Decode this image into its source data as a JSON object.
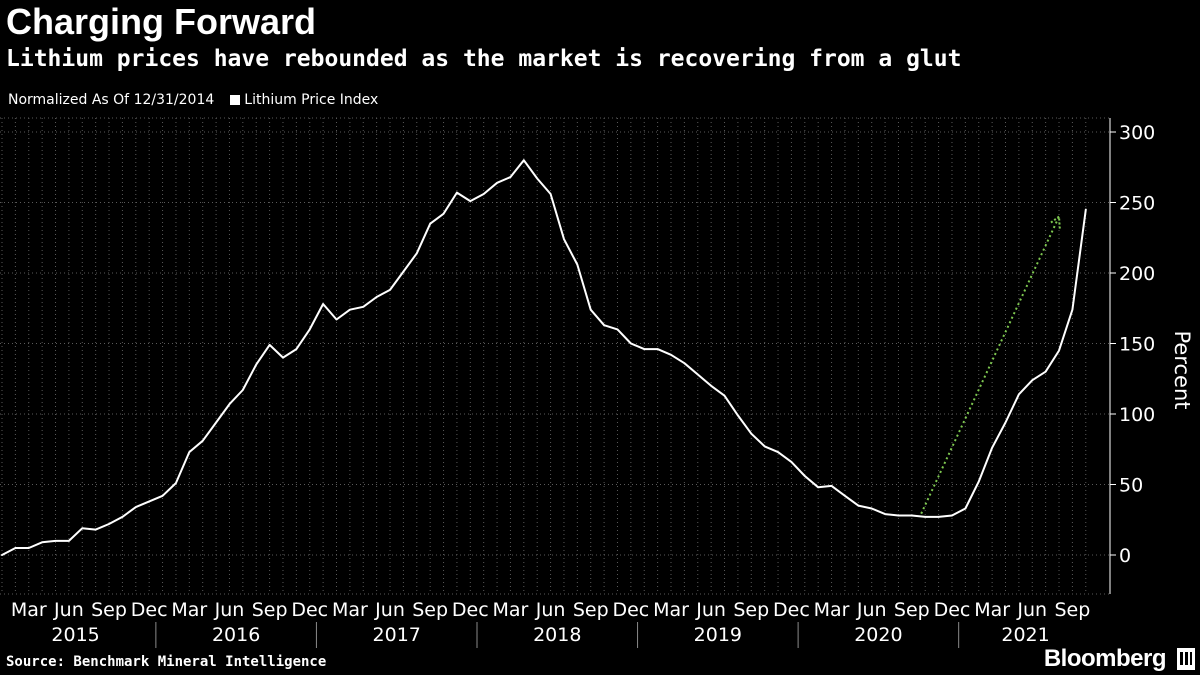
{
  "header": {
    "title": "Charging Forward",
    "subtitle": "Lithium prices have rebounded as the market is recovering from a glut"
  },
  "legend": {
    "note": "Normalized As Of 12/31/2014",
    "series_label": "Lithium Price Index"
  },
  "footer": {
    "source": "Source: Benchmark Mineral Intelligence",
    "brand": "Bloomberg"
  },
  "colors": {
    "background": "#000000",
    "line": "#ffffff",
    "grid": "#5a5a5a",
    "arrow": "#7ec850"
  },
  "chart_data": {
    "type": "line",
    "title": "Charging Forward",
    "subtitle": "Lithium prices have rebounded as the market is recovering from a glut",
    "xlabel": "",
    "ylabel": "Percent",
    "ylim": [
      -27,
      300
    ],
    "yticks": [
      0,
      50,
      100,
      150,
      200,
      250,
      300
    ],
    "grid": true,
    "legend_position": "top-left",
    "x_month_labels": [
      "Mar",
      "Jun",
      "Sep",
      "Dec",
      "Mar",
      "Jun",
      "Sep",
      "Dec",
      "Mar",
      "Jun",
      "Sep",
      "Dec",
      "Mar",
      "Jun",
      "Sep",
      "Dec",
      "Mar",
      "Jun",
      "Sep",
      "Dec",
      "Mar",
      "Jun",
      "Sep",
      "Dec",
      "Mar",
      "Jun",
      "Sep"
    ],
    "x_month_indices": [
      2,
      5,
      8,
      11,
      14,
      17,
      20,
      23,
      26,
      29,
      32,
      35,
      38,
      41,
      44,
      47,
      50,
      53,
      56,
      59,
      62,
      65,
      68,
      71,
      74,
      77,
      80
    ],
    "x_year_labels": [
      "2015",
      "2016",
      "2017",
      "2018",
      "2019",
      "2020",
      "2021"
    ],
    "x_start": "Jan 2015",
    "x_end": "Oct 2021",
    "series": [
      {
        "name": "Lithium Price Index",
        "x_start": "Jan 2015",
        "frequency": "monthly",
        "values": [
          0,
          5,
          5,
          9,
          10,
          10,
          19,
          18,
          22,
          27,
          34,
          38,
          42,
          51,
          73,
          81,
          94,
          107,
          117,
          135,
          149,
          140,
          146,
          160,
          178,
          167,
          174,
          176,
          183,
          188,
          201,
          214,
          235,
          242,
          257,
          251,
          256,
          264,
          268,
          280,
          267,
          256,
          224,
          206,
          174,
          163,
          160,
          150,
          146,
          146,
          142,
          136,
          128,
          120,
          113,
          99,
          86,
          77,
          73,
          66,
          56,
          48,
          49,
          42,
          35,
          33,
          29,
          28,
          28,
          27,
          27,
          28,
          33,
          52,
          76,
          94,
          114,
          124,
          130,
          145,
          174,
          245
        ]
      }
    ],
    "annotations": [
      {
        "type": "arrow",
        "label": "",
        "from": {
          "x": "Oct 2020",
          "y": 35
        },
        "to": {
          "x": "Aug 2021",
          "y": 240
        }
      }
    ]
  }
}
